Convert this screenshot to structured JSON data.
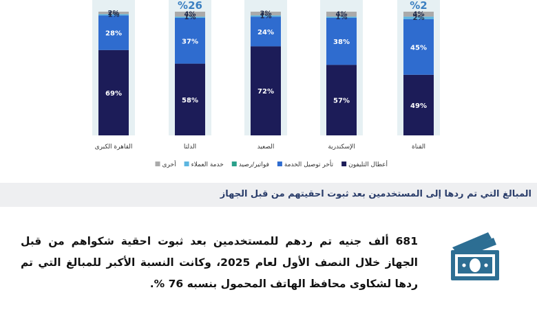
{
  "chart_data": {
    "type": "bar",
    "stacked": true,
    "orientation": "vertical",
    "ylim": [
      0,
      100
    ],
    "categories": [
      "القاهرة الكبرى",
      "الدلتا",
      "الصعيد",
      "الإسكندرية",
      "القناة"
    ],
    "series": [
      {
        "name": "أعطال التليفون",
        "color": "#1c1c58",
        "values": [
          69,
          58,
          72,
          57,
          49
        ],
        "labels": [
          "69%",
          "58%",
          "72%",
          "57%",
          "49%"
        ]
      },
      {
        "name": "تأخر توصيل الخدمة",
        "color": "#2f6ccf",
        "values": [
          28,
          37,
          24,
          38,
          45
        ],
        "labels": [
          "28%",
          "37%",
          "24%",
          "38%",
          "45%"
        ]
      },
      {
        "name": "فواتير/رصيد",
        "color": "#2aa08a",
        "values": [
          0,
          0,
          0,
          0,
          0
        ],
        "labels": [
          "",
          "",
          "",
          "",
          ""
        ]
      },
      {
        "name": "خدمة العملاء",
        "color": "#5db6e0",
        "values": [
          1,
          1,
          1,
          1,
          2
        ],
        "labels": [
          "1%",
          "1%",
          "1%",
          "1%",
          "2%"
        ]
      },
      {
        "name": "أخرى",
        "color": "#aaaaaa",
        "values": [
          2,
          4,
          3,
          4,
          4
        ],
        "labels": [
          "2%",
          "4%",
          "3%",
          "4%",
          "4%"
        ]
      }
    ],
    "top_labels": [
      "",
      "%26",
      "",
      "",
      "%2"
    ],
    "legend_position": "bottom",
    "grid": false
  },
  "section": {
    "title": "المبالغ التي تم ردها إلى المستخدمين بعد ثبوت احقيتهم من قبل الجهاز"
  },
  "body": {
    "text": "681 ألف جنيه تم ردهم للمستخدمين بعد ثبوت احقية شكواهم من قبل الجهاز خلال النصف الأول لعام 2025، وكانت النسبة الأكبر للمبالغ التي تم ردها لشكاوى محافظ الهاتف المحمول بنسبه 76 %."
  },
  "icons": {
    "money": "money-bills-icon"
  }
}
